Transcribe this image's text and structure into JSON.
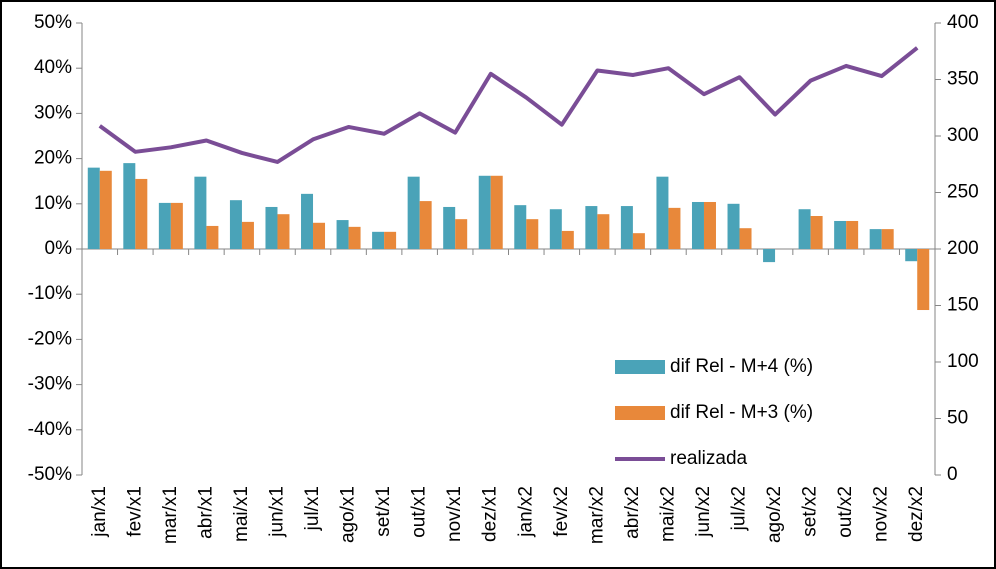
{
  "chart_data": {
    "type": "bar",
    "categories": [
      "jan/x1",
      "fev/x1",
      "mar/x1",
      "abr/x1",
      "mai/x1",
      "jun/x1",
      "jul/x1",
      "ago/x1",
      "set/x1",
      "out/x1",
      "nov/x1",
      "dez/x1",
      "jan/x2",
      "fev/x2",
      "mar/x2",
      "abr/x2",
      "mai/x2",
      "jun/x2",
      "jul/x2",
      "ago/x2",
      "set/x2",
      "out/x2",
      "nov/x2",
      "dez/x2"
    ],
    "series": [
      {
        "name": "dif Rel - M+4 (%)",
        "color": "#4aa3b8",
        "type": "bar",
        "values": [
          18,
          19,
          10.2,
          16,
          10.8,
          9.3,
          12.2,
          6.4,
          3.8,
          16,
          9.3,
          16.2,
          9.7,
          8.8,
          9.5,
          9.5,
          16,
          10.4,
          10,
          -2.9,
          8.8,
          6.2,
          4.4,
          -2.7
        ]
      },
      {
        "name": "dif Rel - M+3 (%)",
        "color": "#e8883a",
        "type": "bar",
        "values": [
          17.3,
          15.5,
          10.2,
          5.1,
          6,
          7.7,
          5.8,
          4.9,
          3.8,
          10.6,
          6.6,
          16.2,
          6.6,
          4,
          7.7,
          3.5,
          9.1,
          10.4,
          4.6,
          0,
          7.3,
          6.2,
          4.4,
          -13.5
        ]
      },
      {
        "name": "realizada",
        "color": "#7a4d96",
        "type": "line",
        "axis": "y2",
        "values": [
          309,
          286,
          290,
          296,
          285,
          277,
          297,
          308,
          302,
          320,
          303,
          355,
          334,
          310,
          358,
          354,
          360,
          337,
          352,
          319,
          349,
          362,
          353,
          378
        ]
      }
    ],
    "ylim": [
      -50,
      50
    ],
    "yticks": [
      {
        "value": -50,
        "label": "-50%"
      },
      {
        "value": -40,
        "label": "-40%"
      },
      {
        "value": -30,
        "label": "-30%"
      },
      {
        "value": -20,
        "label": "-20%"
      },
      {
        "value": -10,
        "label": "-10%"
      },
      {
        "value": 0,
        "label": "0%"
      },
      {
        "value": 10,
        "label": "10%"
      },
      {
        "value": 20,
        "label": "20%"
      },
      {
        "value": 30,
        "label": "30%"
      },
      {
        "value": 40,
        "label": "40%"
      },
      {
        "value": 50,
        "label": "50%"
      }
    ],
    "y2lim": [
      0,
      400
    ],
    "y2ticks": [
      0,
      50,
      100,
      150,
      200,
      250,
      300,
      350,
      400
    ],
    "legend": "lower-right"
  }
}
